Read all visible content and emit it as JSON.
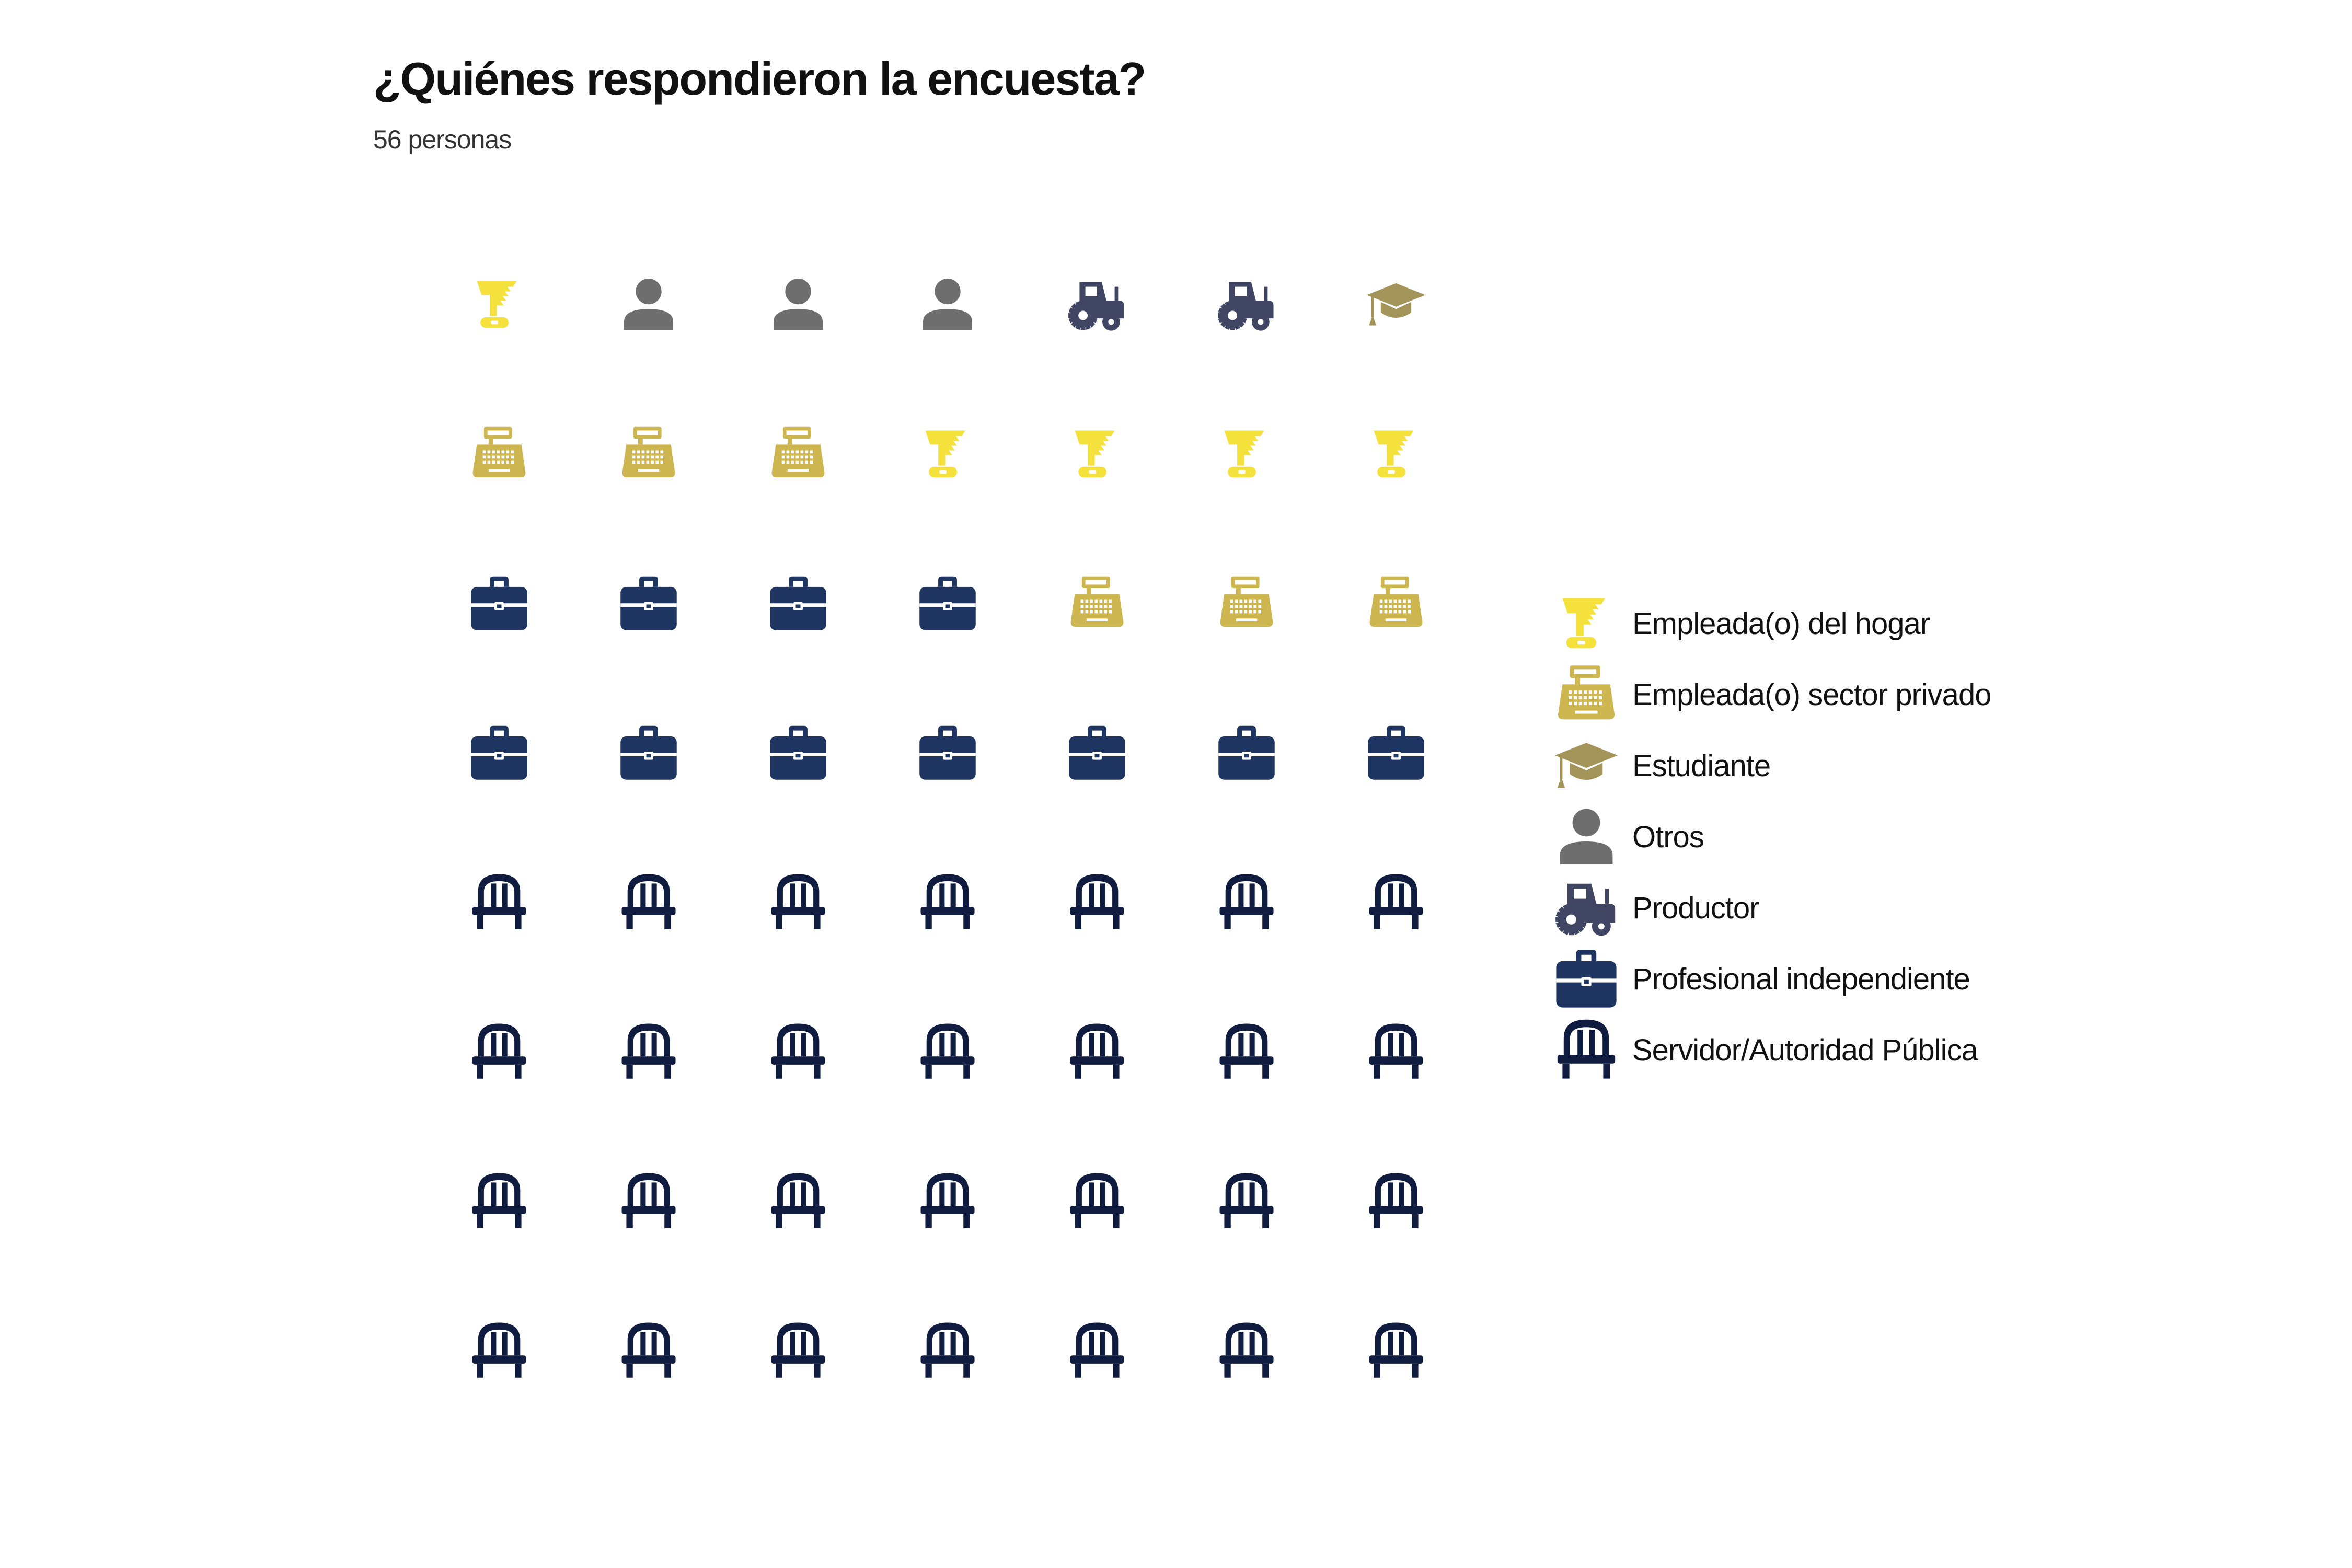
{
  "title": "¿Quiénes respondieron la encuesta?",
  "subtitle": "56 personas",
  "chart_data": {
    "type": "waffle",
    "title": "¿Quiénes respondieron la encuesta?",
    "subtitle": "56 personas",
    "total": 56,
    "grid": {
      "rows": 8,
      "columns": 7
    },
    "legend_position": "right",
    "categories": [
      {
        "key": "hogar",
        "label": "Empleada(o) del hogar",
        "count": 5,
        "color": "#F5E13C",
        "icon": "vacuum-icon"
      },
      {
        "key": "privado",
        "label": "Empleada(o) sector privado",
        "count": 6,
        "color": "#CDB550",
        "icon": "cash-register-icon"
      },
      {
        "key": "estudiante",
        "label": "Estudiante",
        "count": 1,
        "color": "#A39459",
        "icon": "graduation-cap-icon"
      },
      {
        "key": "otros",
        "label": "Otros",
        "count": 3,
        "color": "#6E6E6E",
        "icon": "person-icon"
      },
      {
        "key": "productor",
        "label": "Productor",
        "count": 2,
        "color": "#3F4563",
        "icon": "tractor-icon"
      },
      {
        "key": "profesional",
        "label": "Profesional independiente",
        "count": 11,
        "color": "#1E3461",
        "icon": "briefcase-icon"
      },
      {
        "key": "servidor",
        "label": "Servidor/Autoridad Pública",
        "count": 28,
        "color": "#0F1B3F",
        "icon": "chair-icon"
      }
    ],
    "cells": [
      [
        "hogar",
        "otros",
        "otros",
        "otros",
        "productor",
        "productor",
        "estudiante"
      ],
      [
        "privado",
        "privado",
        "privado",
        "hogar",
        "hogar",
        "hogar",
        "hogar"
      ],
      [
        "profesional",
        "profesional",
        "profesional",
        "profesional",
        "privado",
        "privado",
        "privado"
      ],
      [
        "profesional",
        "profesional",
        "profesional",
        "profesional",
        "profesional",
        "profesional",
        "profesional"
      ],
      [
        "servidor",
        "servidor",
        "servidor",
        "servidor",
        "servidor",
        "servidor",
        "servidor"
      ],
      [
        "servidor",
        "servidor",
        "servidor",
        "servidor",
        "servidor",
        "servidor",
        "servidor"
      ],
      [
        "servidor",
        "servidor",
        "servidor",
        "servidor",
        "servidor",
        "servidor",
        "servidor"
      ],
      [
        "servidor",
        "servidor",
        "servidor",
        "servidor",
        "servidor",
        "servidor",
        "servidor"
      ]
    ]
  }
}
